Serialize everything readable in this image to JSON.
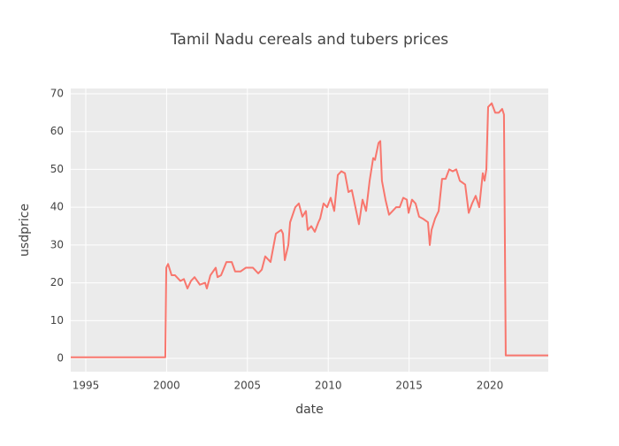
{
  "chart_data": {
    "type": "line",
    "title": "Tamil Nadu cereals and tubers prices",
    "x_label": "date",
    "y_label": "usdprice",
    "xlim": [
      1994.07,
      2023.61
    ],
    "xticks": [
      1995,
      2000,
      2005,
      2010,
      2015,
      2020
    ],
    "ylim": [
      -3.5,
      71.4
    ],
    "yticks": [
      0,
      10,
      20,
      30,
      40,
      50,
      60,
      70
    ],
    "grid": true,
    "x": [
      1994.07,
      1999.92,
      1999.98,
      2000.09,
      2000.31,
      2000.52,
      2000.85,
      2001.07,
      2001.29,
      2001.51,
      2001.73,
      2002.06,
      2002.38,
      2002.49,
      2002.71,
      2003.04,
      2003.15,
      2003.37,
      2003.7,
      2004.03,
      2004.24,
      2004.57,
      2004.9,
      2005.34,
      2005.67,
      2005.89,
      2006.1,
      2006.43,
      2006.76,
      2007.09,
      2007.2,
      2007.31,
      2007.53,
      2007.64,
      2007.96,
      2008.18,
      2008.4,
      2008.62,
      2008.73,
      2008.95,
      2009.17,
      2009.39,
      2009.5,
      2009.71,
      2009.93,
      2010.15,
      2010.37,
      2010.59,
      2010.81,
      2011.03,
      2011.25,
      2011.46,
      2011.68,
      2011.9,
      2012.12,
      2012.34,
      2012.56,
      2012.78,
      2012.89,
      2013.11,
      2013.22,
      2013.32,
      2013.54,
      2013.76,
      2013.98,
      2014.2,
      2014.42,
      2014.64,
      2014.86,
      2014.97,
      2015.18,
      2015.4,
      2015.62,
      2015.84,
      2016.17,
      2016.28,
      2016.39,
      2016.61,
      2016.83,
      2017.04,
      2017.26,
      2017.48,
      2017.7,
      2017.92,
      2018.14,
      2018.47,
      2018.69,
      2018.9,
      2019.12,
      2019.34,
      2019.56,
      2019.67,
      2019.78,
      2019.89,
      2020.11,
      2020.33,
      2020.55,
      2020.76,
      2020.87,
      2020.98,
      2023.61
    ],
    "series": [
      {
        "color": "#f8766d",
        "values": [
          0.3,
          0.3,
          24,
          25,
          22,
          22,
          20.5,
          21,
          18.5,
          20.5,
          21.5,
          19.5,
          20,
          18.5,
          22,
          24,
          21.5,
          22,
          25.5,
          25.5,
          23,
          23,
          24,
          24,
          22.5,
          23.5,
          27,
          25.5,
          33,
          34,
          33,
          26,
          30,
          36,
          40,
          41,
          37.5,
          39,
          34,
          35,
          33.5,
          36,
          37,
          41,
          40,
          42.5,
          39,
          48.5,
          49.5,
          49,
          44,
          44.5,
          40,
          35.5,
          42,
          39,
          47,
          53,
          52.5,
          57,
          57.5,
          47,
          42,
          38,
          39,
          40,
          40,
          42.5,
          42,
          38.5,
          42,
          41,
          37.5,
          37,
          36,
          30,
          34,
          37,
          39,
          47.5,
          47.5,
          50,
          49.5,
          50,
          47,
          46,
          38.5,
          41,
          43,
          40,
          49,
          47,
          50,
          66.5,
          67.5,
          65,
          65,
          66,
          64.5,
          0.8,
          0.8
        ]
      }
    ]
  }
}
